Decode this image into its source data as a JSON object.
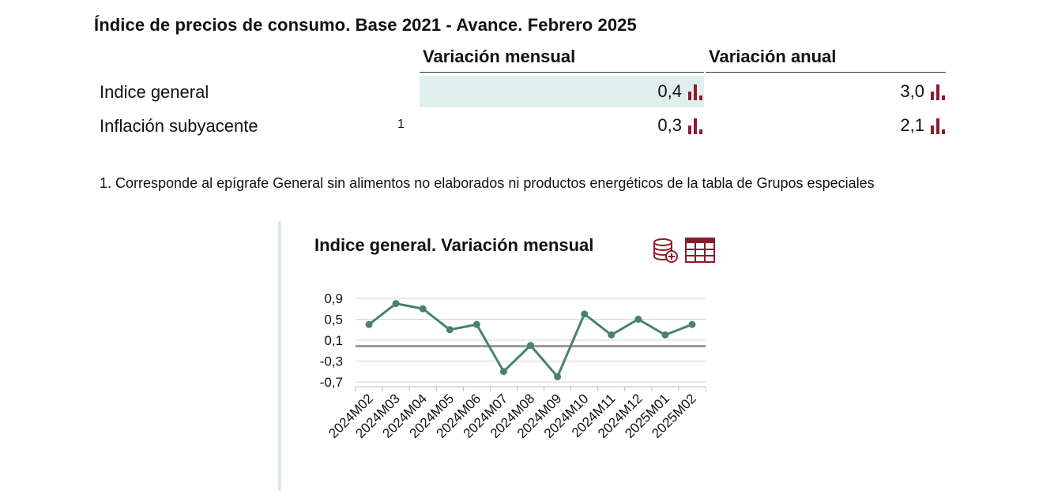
{
  "header": {
    "title": "Índice de precios de consumo. Base 2021 - Avance. Febrero 2025"
  },
  "table": {
    "columns": [
      "Variación mensual",
      "Variación anual"
    ],
    "rows": [
      {
        "label": "Indice general",
        "note": "",
        "monthly": "0,4",
        "annual": "3,0"
      },
      {
        "label": "Inflación subyacente",
        "note": "1",
        "monthly": "0,3",
        "annual": "2,1"
      }
    ]
  },
  "footnote": "1. Corresponde al epígrafe General sin alimentos no elaborados ni productos energéticos de la tabla de Grupos especiales",
  "icons": {
    "bar_chart": "bar-chart-icon",
    "database_add": "database-add-icon",
    "table": "table-icon"
  },
  "colors": {
    "accent": "#8c1b2d",
    "line": "#4a8070",
    "highlight": "#dfefed"
  },
  "chart_data": {
    "type": "line",
    "title": "Indice general. Variación mensual",
    "xlabel": "",
    "ylabel": "",
    "categories": [
      "2024M02",
      "2024M03",
      "2024M04",
      "2024M05",
      "2024M06",
      "2024M07",
      "2024M08",
      "2024M09",
      "2024M10",
      "2024M11",
      "2024M12",
      "2025M01",
      "2025M02"
    ],
    "series": [
      {
        "values": [
          0.4,
          0.8,
          0.7,
          0.3,
          0.4,
          -0.5,
          0.0,
          -0.6,
          0.6,
          0.2,
          0.5,
          0.2,
          0.4
        ]
      }
    ],
    "yticks": [
      "0,9",
      "0,5",
      "0,1",
      "-0,3",
      "-0,7"
    ],
    "ytick_values": [
      0.9,
      0.5,
      0.1,
      -0.3,
      -0.7
    ],
    "ylim": [
      -0.7,
      0.9
    ],
    "grid": true
  }
}
